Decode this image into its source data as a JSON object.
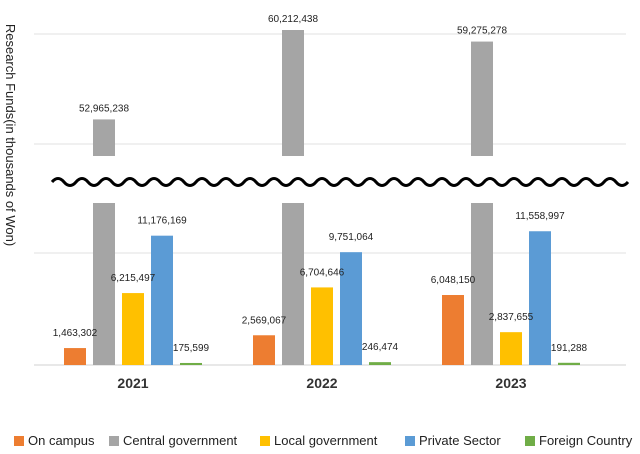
{
  "chart_data": {
    "type": "bar",
    "title": "",
    "xlabel": "",
    "ylabel": "Research Funds(in thousands of Won)",
    "categories": [
      "2021",
      "2022",
      "2023"
    ],
    "axis_break": true,
    "series": [
      {
        "name": "On campus",
        "color": "#ed7d31",
        "values": [
          1463302,
          2569067,
          6048150
        ],
        "labels": [
          "1,463,302",
          "2,569,067",
          "6,048,150"
        ]
      },
      {
        "name": "Central government",
        "color": "#a5a5a5",
        "values": [
          52965238,
          60212438,
          59275278
        ],
        "labels": [
          "52,965,238",
          "60,212,438",
          "59,275,278"
        ]
      },
      {
        "name": "Local government",
        "color": "#ffc000",
        "values": [
          6215497,
          6704646,
          2837655
        ],
        "labels": [
          "6,215,497",
          "6,704,646",
          "2,837,655"
        ]
      },
      {
        "name": "Private Sector",
        "color": "#5b9bd5",
        "values": [
          11176169,
          9751064,
          11558997
        ],
        "labels": [
          "11,176,169",
          "9,751,064",
          "11,558,997"
        ]
      },
      {
        "name": "Foreign Country",
        "color": "#70ad47",
        "values": [
          175599,
          246474,
          191288
        ],
        "labels": [
          "175,599",
          "246,474",
          "191,288"
        ]
      }
    ],
    "legend_position": "bottom"
  }
}
